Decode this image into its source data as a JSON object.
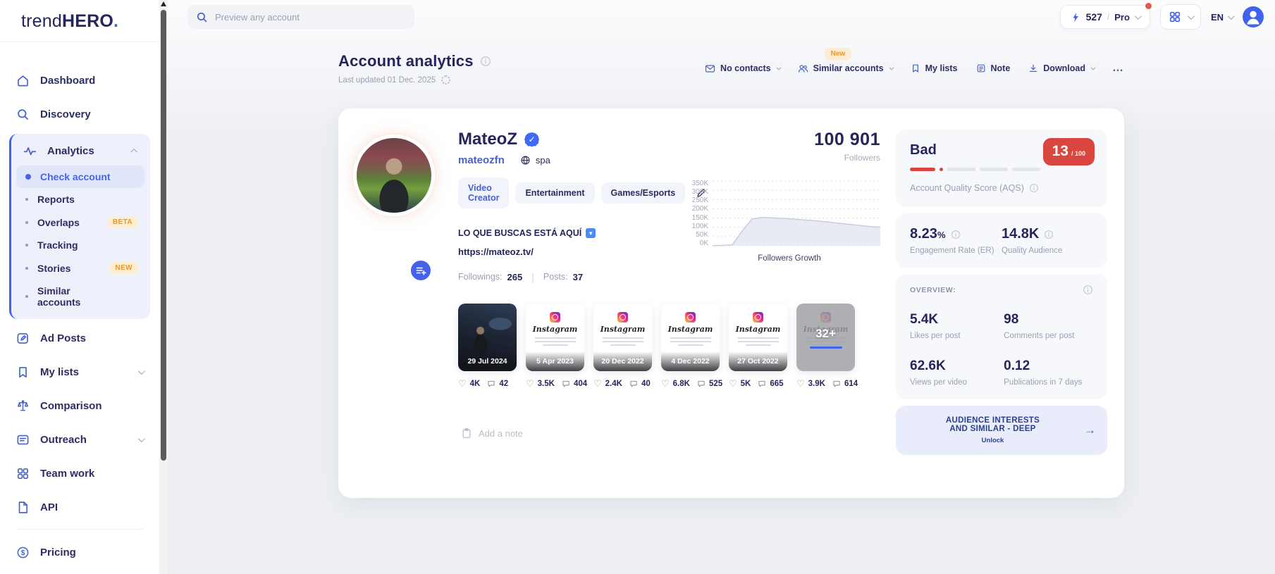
{
  "brand": {
    "trend": "trend",
    "hero": "HERO",
    "dot": "."
  },
  "topbar": {
    "search_placeholder": "Preview any account",
    "credits": "527",
    "sep": "/",
    "plan": "Pro",
    "lang": "EN"
  },
  "sidebar": {
    "dashboard": "Dashboard",
    "discovery": "Discovery",
    "analytics": "Analytics",
    "check_account": "Check account",
    "reports": "Reports",
    "overlaps": "Overlaps",
    "overlaps_badge": "BETA",
    "tracking": "Tracking",
    "stories": "Stories",
    "stories_badge": "NEW",
    "similar_accounts": "Similar accounts",
    "ad_posts": "Ad Posts",
    "my_lists": "My lists",
    "comparison": "Comparison",
    "outreach": "Outreach",
    "team_work": "Team work",
    "api": "API",
    "pricing": "Pricing"
  },
  "header": {
    "title": "Account analytics",
    "last_updated": "Last updated 01 Dec. 2025",
    "new_badge": "New",
    "no_contacts": "No contacts",
    "similar_accounts": "Similar accounts",
    "my_lists": "My lists",
    "note": "Note",
    "download": "Download",
    "more": "…"
  },
  "profile": {
    "name": "MateoZ",
    "verified_check": "✓",
    "username": "mateozfn",
    "language": "spa",
    "tags": {
      "0": "Video Creator",
      "1": "Entertainment",
      "2": "Games/Esports"
    },
    "bio": "LO QUE BUSCAS ESTÁ AQUÍ",
    "bio_emoji": "▼",
    "website": "https://mateoz.tv/",
    "followings_label": "Followings:",
    "followings": "265",
    "sep": "|",
    "posts_label": "Posts:",
    "posts": "37",
    "followers": "100 901",
    "followers_label": "Followers"
  },
  "chart_data": {
    "type": "area",
    "title": "Followers Growth",
    "xlabel": "",
    "ylabel": "Followers",
    "ylim": [
      0,
      350000
    ],
    "grid": "dashed-horizontal",
    "legend": "none",
    "yticks": {
      "0": "350K",
      "1": "300K",
      "2": "250K",
      "3": "200K",
      "4": "150K",
      "5": "100K",
      "6": "50K",
      "7": "0K"
    },
    "series": [
      {
        "name": "Followers",
        "values_thousands": [
          1,
          2,
          5,
          80,
          145,
          153,
          151,
          148,
          145,
          141,
          137,
          132,
          127,
          121,
          115,
          109,
          104,
          101
        ]
      }
    ],
    "current_value": 100901
  },
  "posts_common": {
    "instagram": "Instagram"
  },
  "posts": {
    "0": {
      "date": "29 Jul 2024",
      "likes": "4K",
      "comments": "42"
    },
    "1": {
      "date": "5 Apr 2023",
      "likes": "3.5K",
      "comments": "404"
    },
    "2": {
      "date": "20 Dec 2022",
      "likes": "2.4K",
      "comments": "40"
    },
    "3": {
      "date": "4 Dec 2022",
      "likes": "6.8K",
      "comments": "525"
    },
    "4": {
      "date": "27 Oct 2022",
      "likes": "5K",
      "comments": "665"
    },
    "5": {
      "more_count": "32+",
      "likes": "3.9K",
      "comments": "614"
    }
  },
  "aqs": {
    "rating": "Bad",
    "score": "13",
    "score_max": "/ 100",
    "label": "Account Quality Score (AQS)",
    "er_value": "8.23",
    "er_unit": "%",
    "er_label": "Engagement Rate (ER)",
    "qa_value": "14.8K",
    "qa_label": "Quality Audience",
    "overview_label": "OVERVIEW:",
    "stats": {
      "0": {
        "value": "5.4K",
        "label": "Likes per post"
      },
      "1": {
        "value": "98",
        "label": "Comments per post"
      },
      "2": {
        "value": "62.6K",
        "label": "Views per video"
      },
      "3": {
        "value": "0.12",
        "label": "Publications in 7 days"
      }
    },
    "unlock_line1": "AUDIENCE INTERESTS",
    "unlock_line2": "AND SIMILAR - DEEP",
    "unlock_sub": "Unlock",
    "unlock_arrow": "→"
  },
  "misc": {
    "add_note": "Add a note"
  },
  "colors": {
    "accent_blue": "#3f63ef",
    "navy_text": "#23255c",
    "bad_red": "#d9463e",
    "badge_orange": "#e8962e",
    "panel_bg": "#f7f8fb",
    "unlock_bg": "#e9edfb"
  }
}
